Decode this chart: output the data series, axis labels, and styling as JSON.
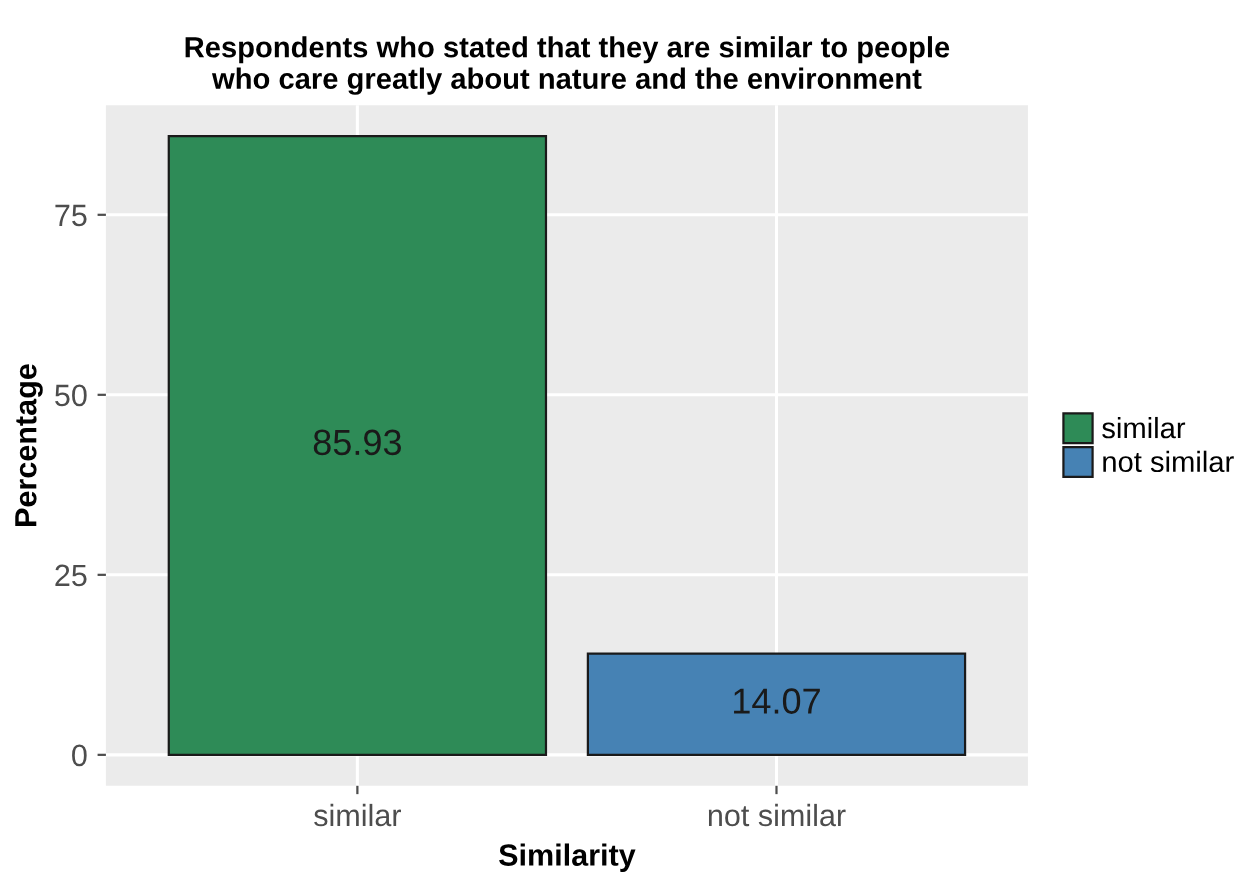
{
  "chart_data": {
    "type": "bar",
    "title": "Respondents who stated that they are similar to people\nwho care greatly about nature and the environment",
    "xlabel": "Similarity",
    "ylabel": "Percentage",
    "categories": [
      "similar",
      "not similar"
    ],
    "series": [
      {
        "name": "similar",
        "color": "#2e8b57",
        "values": [
          85.93,
          null
        ]
      },
      {
        "name": "not similar",
        "color": "#4682b4",
        "values": [
          null,
          14.07
        ]
      }
    ],
    "ylim": [
      -4.3,
      90.2
    ],
    "yticks": [
      0,
      25,
      50,
      75
    ],
    "data_labels": true,
    "grid": true,
    "legend": "right"
  }
}
